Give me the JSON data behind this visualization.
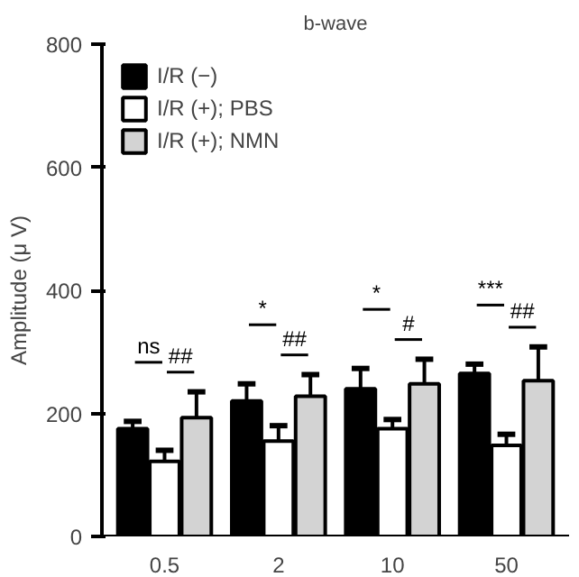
{
  "chart_data": {
    "type": "bar",
    "title": "b-wave",
    "ylabel": "Amplitude (μ V)",
    "categories": [
      "0.5",
      "2",
      "10",
      "50"
    ],
    "series": [
      {
        "name": "I/R (−)",
        "color": "#000000",
        "values": [
          175,
          220,
          240,
          265
        ],
        "errors": [
          [
            175,
            187
          ],
          [
            220,
            248
          ],
          [
            240,
            273
          ],
          [
            265,
            280
          ]
        ]
      },
      {
        "name": "I/R (+); PBS",
        "color": "#ffffff",
        "values": [
          122,
          155,
          175,
          148
        ],
        "errors": [
          [
            122,
            140
          ],
          [
            155,
            180
          ],
          [
            175,
            190
          ],
          [
            148,
            166
          ]
        ]
      },
      {
        "name": "I/R (+); NMN",
        "color": "#d3d3d3",
        "values": [
          193,
          228,
          248,
          253
        ],
        "errors": [
          [
            193,
            235
          ],
          [
            228,
            263
          ],
          [
            248,
            288
          ],
          [
            253,
            308
          ]
        ]
      }
    ],
    "ylim": [
      0,
      800
    ],
    "yticks": [
      0,
      200,
      400,
      600,
      800
    ],
    "grid": false,
    "legend": "top left",
    "annotations": [
      "ns",
      "##",
      "*",
      "##",
      "*",
      "#",
      "***",
      "##"
    ]
  }
}
